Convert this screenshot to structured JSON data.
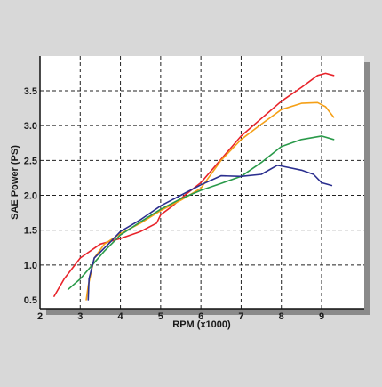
{
  "chart_data": {
    "type": "line",
    "xlabel": "RPM (x1000)",
    "ylabel": "SAE Power (PS)",
    "xlim": [
      2,
      10
    ],
    "ylim": [
      0.5,
      3.8
    ],
    "x_ticks": [
      "2",
      "3",
      "4",
      "5",
      "6",
      "7",
      "8",
      "9"
    ],
    "y_ticks": [
      "0.5",
      "1.0",
      "1.5",
      "2.0",
      "2.5",
      "3.0",
      "3.5"
    ],
    "grid": true,
    "series": [
      {
        "color": "#e8232a",
        "points": [
          [
            2.35,
            0.55
          ],
          [
            2.6,
            0.8
          ],
          [
            3.0,
            1.1
          ],
          [
            3.5,
            1.3
          ],
          [
            4.0,
            1.38
          ],
          [
            4.5,
            1.48
          ],
          [
            4.9,
            1.6
          ],
          [
            5.0,
            1.72
          ],
          [
            5.3,
            1.85
          ],
          [
            5.6,
            2.0
          ],
          [
            6.0,
            2.18
          ],
          [
            6.4,
            2.45
          ],
          [
            7.0,
            2.85
          ],
          [
            7.5,
            3.1
          ],
          [
            8.0,
            3.35
          ],
          [
            8.5,
            3.55
          ],
          [
            8.9,
            3.72
          ],
          [
            9.1,
            3.75
          ],
          [
            9.3,
            3.72
          ]
        ]
      },
      {
        "color": "#f5a017",
        "points": [
          [
            3.15,
            0.5
          ],
          [
            3.2,
            0.7
          ],
          [
            3.35,
            1.1
          ],
          [
            3.6,
            1.3
          ],
          [
            4.0,
            1.45
          ],
          [
            4.5,
            1.6
          ],
          [
            5.0,
            1.78
          ],
          [
            5.5,
            1.93
          ],
          [
            6.0,
            2.1
          ],
          [
            6.5,
            2.5
          ],
          [
            7.0,
            2.8
          ],
          [
            7.5,
            3.02
          ],
          [
            8.0,
            3.23
          ],
          [
            8.5,
            3.32
          ],
          [
            8.9,
            3.33
          ],
          [
            9.1,
            3.27
          ],
          [
            9.3,
            3.12
          ]
        ]
      },
      {
        "color": "#2a9a4a",
        "points": [
          [
            2.7,
            0.65
          ],
          [
            3.0,
            0.8
          ],
          [
            3.3,
            1.0
          ],
          [
            3.6,
            1.2
          ],
          [
            4.0,
            1.43
          ],
          [
            4.5,
            1.62
          ],
          [
            5.0,
            1.8
          ],
          [
            5.5,
            1.95
          ],
          [
            6.0,
            2.07
          ],
          [
            6.5,
            2.17
          ],
          [
            7.0,
            2.27
          ],
          [
            7.5,
            2.47
          ],
          [
            8.0,
            2.7
          ],
          [
            8.5,
            2.8
          ],
          [
            9.0,
            2.85
          ],
          [
            9.3,
            2.8
          ]
        ]
      },
      {
        "color": "#2b2f8f",
        "points": [
          [
            3.2,
            0.5
          ],
          [
            3.22,
            0.8
          ],
          [
            3.35,
            1.1
          ],
          [
            3.7,
            1.3
          ],
          [
            4.0,
            1.48
          ],
          [
            4.5,
            1.65
          ],
          [
            5.0,
            1.85
          ],
          [
            5.5,
            2.0
          ],
          [
            6.0,
            2.15
          ],
          [
            6.5,
            2.28
          ],
          [
            7.0,
            2.27
          ],
          [
            7.5,
            2.3
          ],
          [
            7.9,
            2.43
          ],
          [
            8.0,
            2.42
          ],
          [
            8.5,
            2.36
          ],
          [
            8.8,
            2.3
          ],
          [
            9.0,
            2.18
          ],
          [
            9.25,
            2.14
          ]
        ]
      }
    ]
  }
}
